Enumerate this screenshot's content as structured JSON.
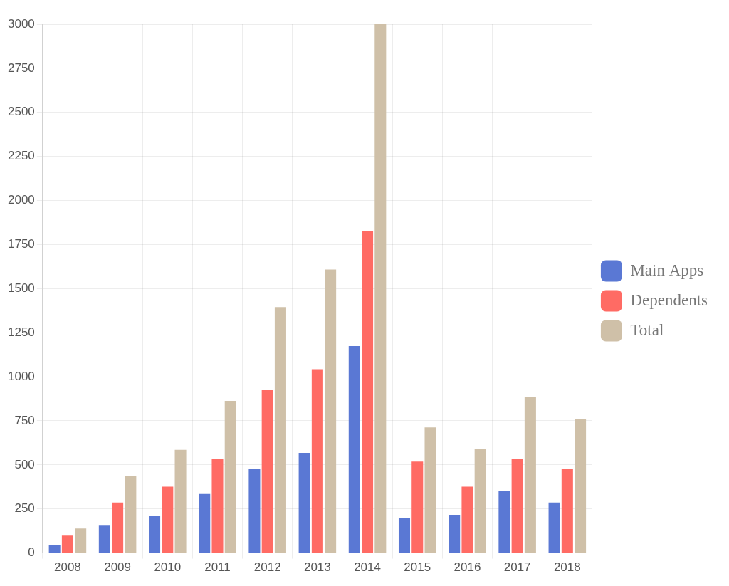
{
  "chart_data": {
    "type": "bar",
    "categories": [
      "2008",
      "2009",
      "2010",
      "2011",
      "2012",
      "2013",
      "2014",
      "2015",
      "2016",
      "2017",
      "2018"
    ],
    "series": [
      {
        "name": "Main Apps",
        "color": "#5a78d4",
        "values": [
          45,
          155,
          213,
          335,
          475,
          568,
          1174,
          196,
          217,
          352,
          286
        ]
      },
      {
        "name": "Dependents",
        "color": "#ff6b64",
        "values": [
          98,
          286,
          376,
          532,
          924,
          1043,
          1828,
          519,
          376,
          532,
          475
        ]
      },
      {
        "name": "Total",
        "color": "#cfc0a8",
        "values": [
          139,
          438,
          585,
          863,
          1395,
          1608,
          3000,
          712,
          589,
          883,
          761
        ]
      }
    ],
    "ylim": [
      0,
      3000
    ],
    "yticks": [
      0,
      250,
      500,
      750,
      1000,
      1250,
      1500,
      1750,
      2000,
      2250,
      2500,
      2750,
      3000
    ],
    "grid": true,
    "legend": "right"
  }
}
